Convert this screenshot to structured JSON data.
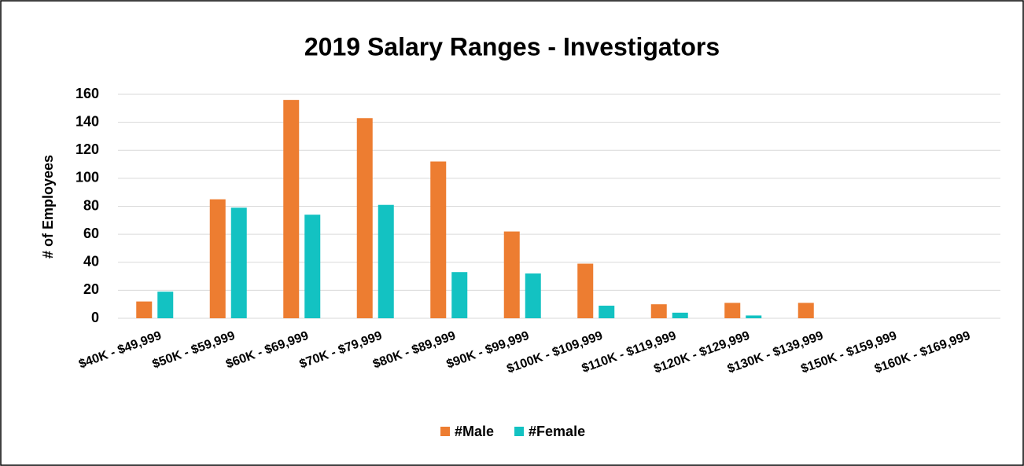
{
  "chart_data": {
    "type": "bar",
    "title": "2019 Salary Ranges - Investigators",
    "y_label": "# of Employees",
    "categories": [
      "$40K - $49,999",
      "$50K - $59,999",
      "$60K - $69,999",
      "$70K - $79,999",
      "$80K - $89,999",
      "$90K - $99,999",
      "$100K - $109,999",
      "$110K - $119,999",
      "$120K - $129,999",
      "$130K - $139,999",
      "$150K - $159,999",
      "$160K - $169,999"
    ],
    "series": [
      {
        "name": "#Male",
        "color": "#ed7d31",
        "values": [
          12,
          85,
          156,
          143,
          112,
          62,
          39,
          10,
          11,
          11,
          0,
          0
        ]
      },
      {
        "name": "#Female",
        "color": "#13c2c2",
        "values": [
          19,
          79,
          74,
          81,
          33,
          32,
          9,
          4,
          2,
          0,
          0,
          0
        ]
      }
    ],
    "ylim": [
      0,
      160
    ],
    "yticks": [
      0,
      20,
      40,
      60,
      80,
      100,
      120,
      140,
      160
    ],
    "grid": true,
    "legend": "bottom"
  }
}
